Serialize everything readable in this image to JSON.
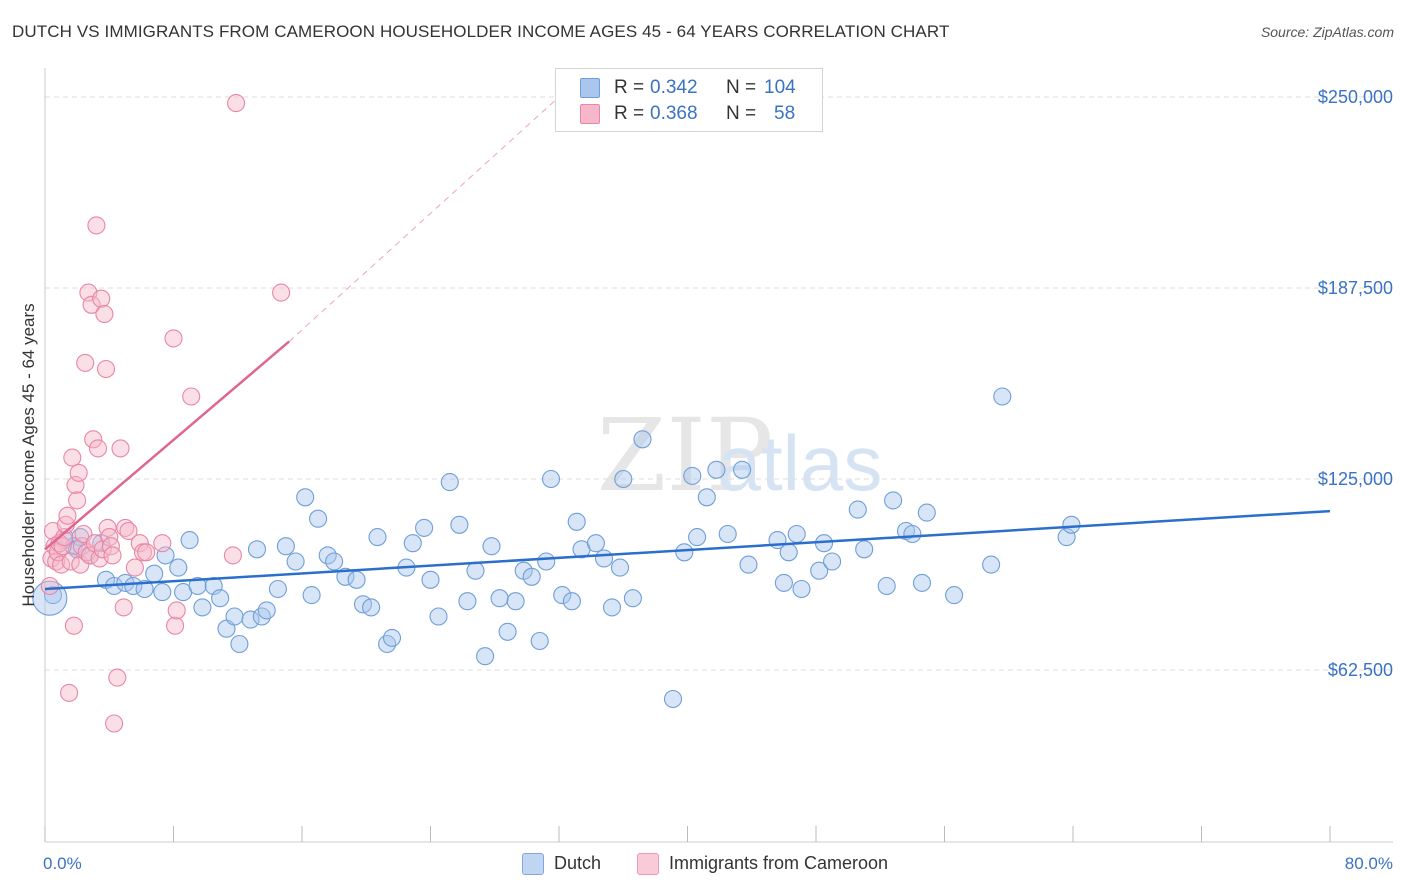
{
  "title": "DUTCH VS IMMIGRANTS FROM CAMEROON HOUSEHOLDER INCOME AGES 45 - 64 YEARS CORRELATION CHART",
  "source": "Source: ZipAtlas.com",
  "watermark": {
    "zip": "ZIP",
    "atlas": "atlas"
  },
  "colors": {
    "dutch_fill": "#a9c6ee",
    "dutch_stroke": "#6f9fd8",
    "dutch_line": "#2b6fcc",
    "cameroon_fill": "#f6b7ca",
    "cameroon_stroke": "#e886a6",
    "cameroon_line": "#e0668f",
    "axis_label": "#3a72c4",
    "grid": "#dddddd"
  },
  "legend": {
    "r_label": "R =",
    "n_label": "N =",
    "rows": [
      {
        "name": "Dutch",
        "r": "0.342",
        "n": "104"
      },
      {
        "name": "Immigrants from Cameroon",
        "r": "0.368",
        "n": "58"
      }
    ]
  },
  "chart_data": {
    "type": "scatter",
    "title": "DUTCH VS IMMIGRANTS FROM CAMEROON HOUSEHOLDER INCOME AGES 45 - 64 YEARS CORRELATION CHART",
    "xlabel": "",
    "ylabel": "Householder Income Ages 45 - 64 years",
    "xlim": [
      0,
      80
    ],
    "ylim": [
      15000,
      260000
    ],
    "x_tick_labels": {
      "left": "0.0%",
      "right": "80.0%"
    },
    "x_minor_ticks": [
      0,
      8,
      16,
      24,
      32,
      40,
      48,
      56,
      64,
      72,
      80
    ],
    "y_ticks": [
      62500,
      125000,
      187500,
      250000
    ],
    "y_tick_labels": [
      "$62,500",
      "$125,000",
      "$187,500",
      "$250,000"
    ],
    "grid": true,
    "legend_position": "top-center",
    "series": [
      {
        "name": "Dutch",
        "r": 0.342,
        "n": 104,
        "trend": {
          "x": [
            0,
            80
          ],
          "y": [
            89000,
            114500
          ],
          "dashed": false
        },
        "points": [
          [
            0.5,
            87000
          ],
          [
            1.2,
            105000
          ],
          [
            1.8,
            103000
          ],
          [
            2.2,
            106000
          ],
          [
            2.8,
            100000
          ],
          [
            3.5,
            104000
          ],
          [
            3.8,
            92000
          ],
          [
            4.3,
            90000
          ],
          [
            5.0,
            91000
          ],
          [
            5.5,
            90000
          ],
          [
            6.2,
            89000
          ],
          [
            6.8,
            94000
          ],
          [
            7.3,
            88000
          ],
          [
            7.5,
            100000
          ],
          [
            8.3,
            96000
          ],
          [
            8.6,
            88000
          ],
          [
            9.0,
            105000
          ],
          [
            9.5,
            90000
          ],
          [
            9.8,
            83000
          ],
          [
            10.5,
            90000
          ],
          [
            10.9,
            86000
          ],
          [
            11.3,
            76000
          ],
          [
            11.8,
            80000
          ],
          [
            12.1,
            71000
          ],
          [
            12.8,
            79000
          ],
          [
            13.2,
            102000
          ],
          [
            13.5,
            80000
          ],
          [
            13.8,
            82000
          ],
          [
            14.5,
            89000
          ],
          [
            15.0,
            103000
          ],
          [
            15.6,
            98000
          ],
          [
            16.2,
            119000
          ],
          [
            16.6,
            87000
          ],
          [
            17.0,
            112000
          ],
          [
            17.6,
            100000
          ],
          [
            18.0,
            98000
          ],
          [
            18.7,
            93000
          ],
          [
            19.4,
            92000
          ],
          [
            19.8,
            84000
          ],
          [
            20.3,
            83000
          ],
          [
            20.7,
            106000
          ],
          [
            21.3,
            71000
          ],
          [
            21.6,
            73000
          ],
          [
            22.5,
            96000
          ],
          [
            22.9,
            104000
          ],
          [
            23.6,
            109000
          ],
          [
            24.0,
            92000
          ],
          [
            24.5,
            80000
          ],
          [
            25.2,
            124000
          ],
          [
            25.8,
            110000
          ],
          [
            26.3,
            85000
          ],
          [
            26.8,
            95000
          ],
          [
            27.4,
            67000
          ],
          [
            27.8,
            103000
          ],
          [
            28.3,
            86000
          ],
          [
            28.8,
            75000
          ],
          [
            29.3,
            85000
          ],
          [
            29.8,
            95000
          ],
          [
            30.3,
            93000
          ],
          [
            30.8,
            72000
          ],
          [
            31.2,
            98000
          ],
          [
            31.5,
            125000
          ],
          [
            32.2,
            87000
          ],
          [
            32.8,
            85000
          ],
          [
            33.1,
            111000
          ],
          [
            33.4,
            102000
          ],
          [
            34.3,
            104000
          ],
          [
            34.8,
            99000
          ],
          [
            35.3,
            83000
          ],
          [
            35.8,
            96000
          ],
          [
            36.0,
            125000
          ],
          [
            36.6,
            86000
          ],
          [
            37.2,
            138000
          ],
          [
            39.1,
            53000
          ],
          [
            39.8,
            101000
          ],
          [
            40.3,
            126000
          ],
          [
            40.6,
            106000
          ],
          [
            41.2,
            119000
          ],
          [
            41.8,
            128000
          ],
          [
            42.5,
            107000
          ],
          [
            43.4,
            128000
          ],
          [
            43.8,
            97000
          ],
          [
            45.6,
            105000
          ],
          [
            46.0,
            91000
          ],
          [
            46.3,
            101000
          ],
          [
            46.8,
            107000
          ],
          [
            47.1,
            89000
          ],
          [
            48.2,
            95000
          ],
          [
            48.5,
            104000
          ],
          [
            49.0,
            98000
          ],
          [
            50.6,
            115000
          ],
          [
            51.0,
            102000
          ],
          [
            52.4,
            90000
          ],
          [
            52.8,
            118000
          ],
          [
            53.6,
            108000
          ],
          [
            54.0,
            107000
          ],
          [
            54.6,
            91000
          ],
          [
            54.9,
            114000
          ],
          [
            56.6,
            87000
          ],
          [
            58.9,
            97000
          ],
          [
            59.6,
            152000
          ],
          [
            63.6,
            106000
          ],
          [
            63.9,
            110000
          ],
          [
            2.0,
            102000
          ]
        ]
      },
      {
        "name": "Immigrants from Cameroon",
        "r": 0.368,
        "n": 58,
        "trend": {
          "x": [
            0,
            15.2
          ],
          "y": [
            102000,
            170000
          ],
          "dashed": false,
          "extension": {
            "x": [
              15.2,
              32
            ],
            "y": [
              170000,
              250000
            ],
            "dashed": true
          }
        },
        "points": [
          [
            0.3,
            90000
          ],
          [
            0.4,
            99000
          ],
          [
            0.5,
            108000
          ],
          [
            0.6,
            103000
          ],
          [
            0.7,
            98000
          ],
          [
            0.8,
            101000
          ],
          [
            0.9,
            104000
          ],
          [
            1.0,
            97000
          ],
          [
            1.1,
            103000
          ],
          [
            1.2,
            106000
          ],
          [
            1.3,
            110000
          ],
          [
            1.4,
            113000
          ],
          [
            1.5,
            55000
          ],
          [
            1.6,
            98000
          ],
          [
            1.7,
            132000
          ],
          [
            1.8,
            77000
          ],
          [
            1.9,
            123000
          ],
          [
            2.0,
            118000
          ],
          [
            2.1,
            127000
          ],
          [
            2.2,
            97000
          ],
          [
            2.3,
            103000
          ],
          [
            2.4,
            107000
          ],
          [
            2.5,
            163000
          ],
          [
            2.6,
            101000
          ],
          [
            2.7,
            186000
          ],
          [
            2.8,
            100000
          ],
          [
            2.9,
            182000
          ],
          [
            3.0,
            138000
          ],
          [
            3.1,
            104000
          ],
          [
            3.2,
            208000
          ],
          [
            3.3,
            135000
          ],
          [
            3.4,
            99000
          ],
          [
            3.5,
            184000
          ],
          [
            3.6,
            102000
          ],
          [
            3.7,
            179000
          ],
          [
            3.8,
            161000
          ],
          [
            3.9,
            109000
          ],
          [
            4.0,
            106000
          ],
          [
            4.1,
            103000
          ],
          [
            4.2,
            100000
          ],
          [
            4.3,
            45000
          ],
          [
            4.5,
            60000
          ],
          [
            4.7,
            135000
          ],
          [
            4.9,
            83000
          ],
          [
            5.0,
            109000
          ],
          [
            5.2,
            108000
          ],
          [
            5.6,
            96000
          ],
          [
            5.9,
            104000
          ],
          [
            6.1,
            101000
          ],
          [
            6.3,
            101000
          ],
          [
            7.3,
            104000
          ],
          [
            8.0,
            171000
          ],
          [
            8.1,
            77000
          ],
          [
            8.2,
            82000
          ],
          [
            9.1,
            152000
          ],
          [
            11.7,
            100000
          ],
          [
            11.9,
            248000
          ],
          [
            14.7,
            186000
          ]
        ]
      }
    ]
  }
}
